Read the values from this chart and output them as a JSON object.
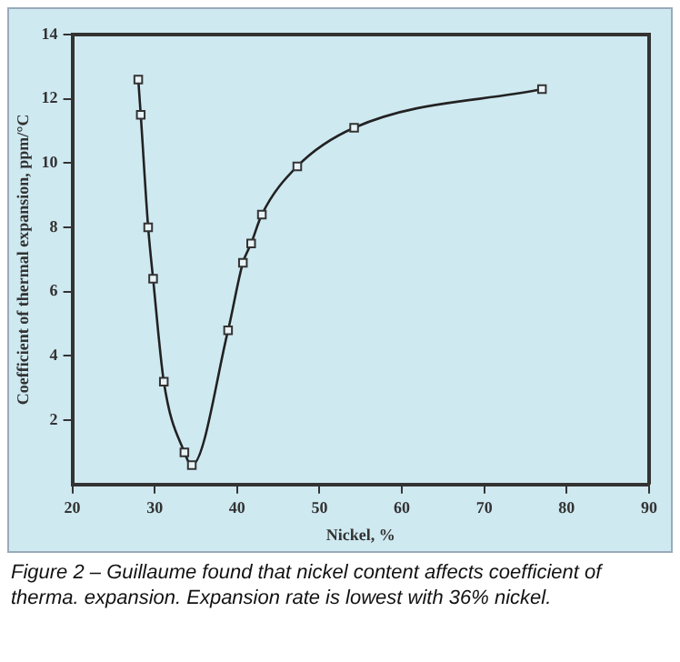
{
  "chart_data": {
    "type": "line",
    "xlabel": "Nickel, %",
    "ylabel": "Coefficient of thermal expansion, ppm/°C",
    "x": [
      28.0,
      28.3,
      29.2,
      29.8,
      31.1,
      33.6,
      34.5,
      38.9,
      40.7,
      41.7,
      43.0,
      47.3,
      54.2,
      77.0
    ],
    "series": [
      {
        "color": "#222222",
        "values": [
          12.6,
          11.5,
          8.0,
          6.4,
          3.2,
          1.0,
          0.6,
          4.8,
          6.9,
          7.5,
          8.4,
          9.9,
          11.1,
          12.3
        ]
      }
    ],
    "xlim": [
      20,
      90
    ],
    "xticks": [
      20,
      30,
      40,
      50,
      60,
      70,
      80,
      90
    ],
    "ylim": [
      0,
      14
    ],
    "yticks": [
      2,
      4,
      6,
      8,
      10,
      12,
      14
    ],
    "grid": false,
    "legend": false,
    "marker": "square",
    "line_style": "solid",
    "annotations": [
      "Figure 2 – Guillaume found that nickel content affects coefficient of therma. expansion.  Expansion rate is lowest with 36% nickel."
    ]
  }
}
